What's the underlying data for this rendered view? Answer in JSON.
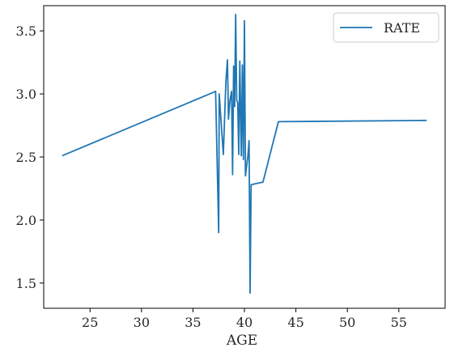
{
  "chart_data": {
    "type": "line",
    "xlabel": "AGE",
    "ylabel": "",
    "xlim": [
      20.5,
      59.5
    ],
    "ylim": [
      1.3,
      3.7
    ],
    "xticks": [
      25,
      30,
      35,
      40,
      45,
      50,
      55
    ],
    "yticks": [
      1.5,
      2.0,
      2.5,
      3.0,
      3.5
    ],
    "xtick_labels": [
      "25",
      "30",
      "35",
      "40",
      "45",
      "50",
      "55"
    ],
    "ytick_labels": [
      "1.5",
      "2.0",
      "2.5",
      "3.0",
      "3.5"
    ],
    "grid": false,
    "legend_position": "top-right",
    "series": [
      {
        "name": "RATE",
        "color": "#1f77b4",
        "points": [
          [
            22.3,
            2.51
          ],
          [
            37.2,
            3.02
          ],
          [
            37.5,
            1.9
          ],
          [
            37.55,
            3.0
          ],
          [
            37.95,
            2.52
          ],
          [
            38.2,
            3.1
          ],
          [
            38.35,
            3.27
          ],
          [
            38.45,
            2.8
          ],
          [
            38.6,
            2.95
          ],
          [
            38.75,
            3.02
          ],
          [
            38.85,
            2.36
          ],
          [
            38.95,
            3.22
          ],
          [
            39.05,
            2.9
          ],
          [
            39.15,
            3.63
          ],
          [
            39.25,
            2.95
          ],
          [
            39.35,
            2.93
          ],
          [
            39.45,
            2.52
          ],
          [
            39.55,
            3.26
          ],
          [
            39.7,
            2.51
          ],
          [
            39.8,
            3.23
          ],
          [
            39.9,
            2.48
          ],
          [
            40.0,
            3.58
          ],
          [
            40.1,
            2.35
          ],
          [
            40.25,
            2.45
          ],
          [
            40.35,
            2.52
          ],
          [
            40.45,
            2.63
          ],
          [
            40.55,
            1.42
          ],
          [
            40.65,
            2.28
          ],
          [
            41.8,
            2.3
          ],
          [
            43.3,
            2.78
          ],
          [
            57.7,
            2.79
          ]
        ]
      }
    ]
  }
}
